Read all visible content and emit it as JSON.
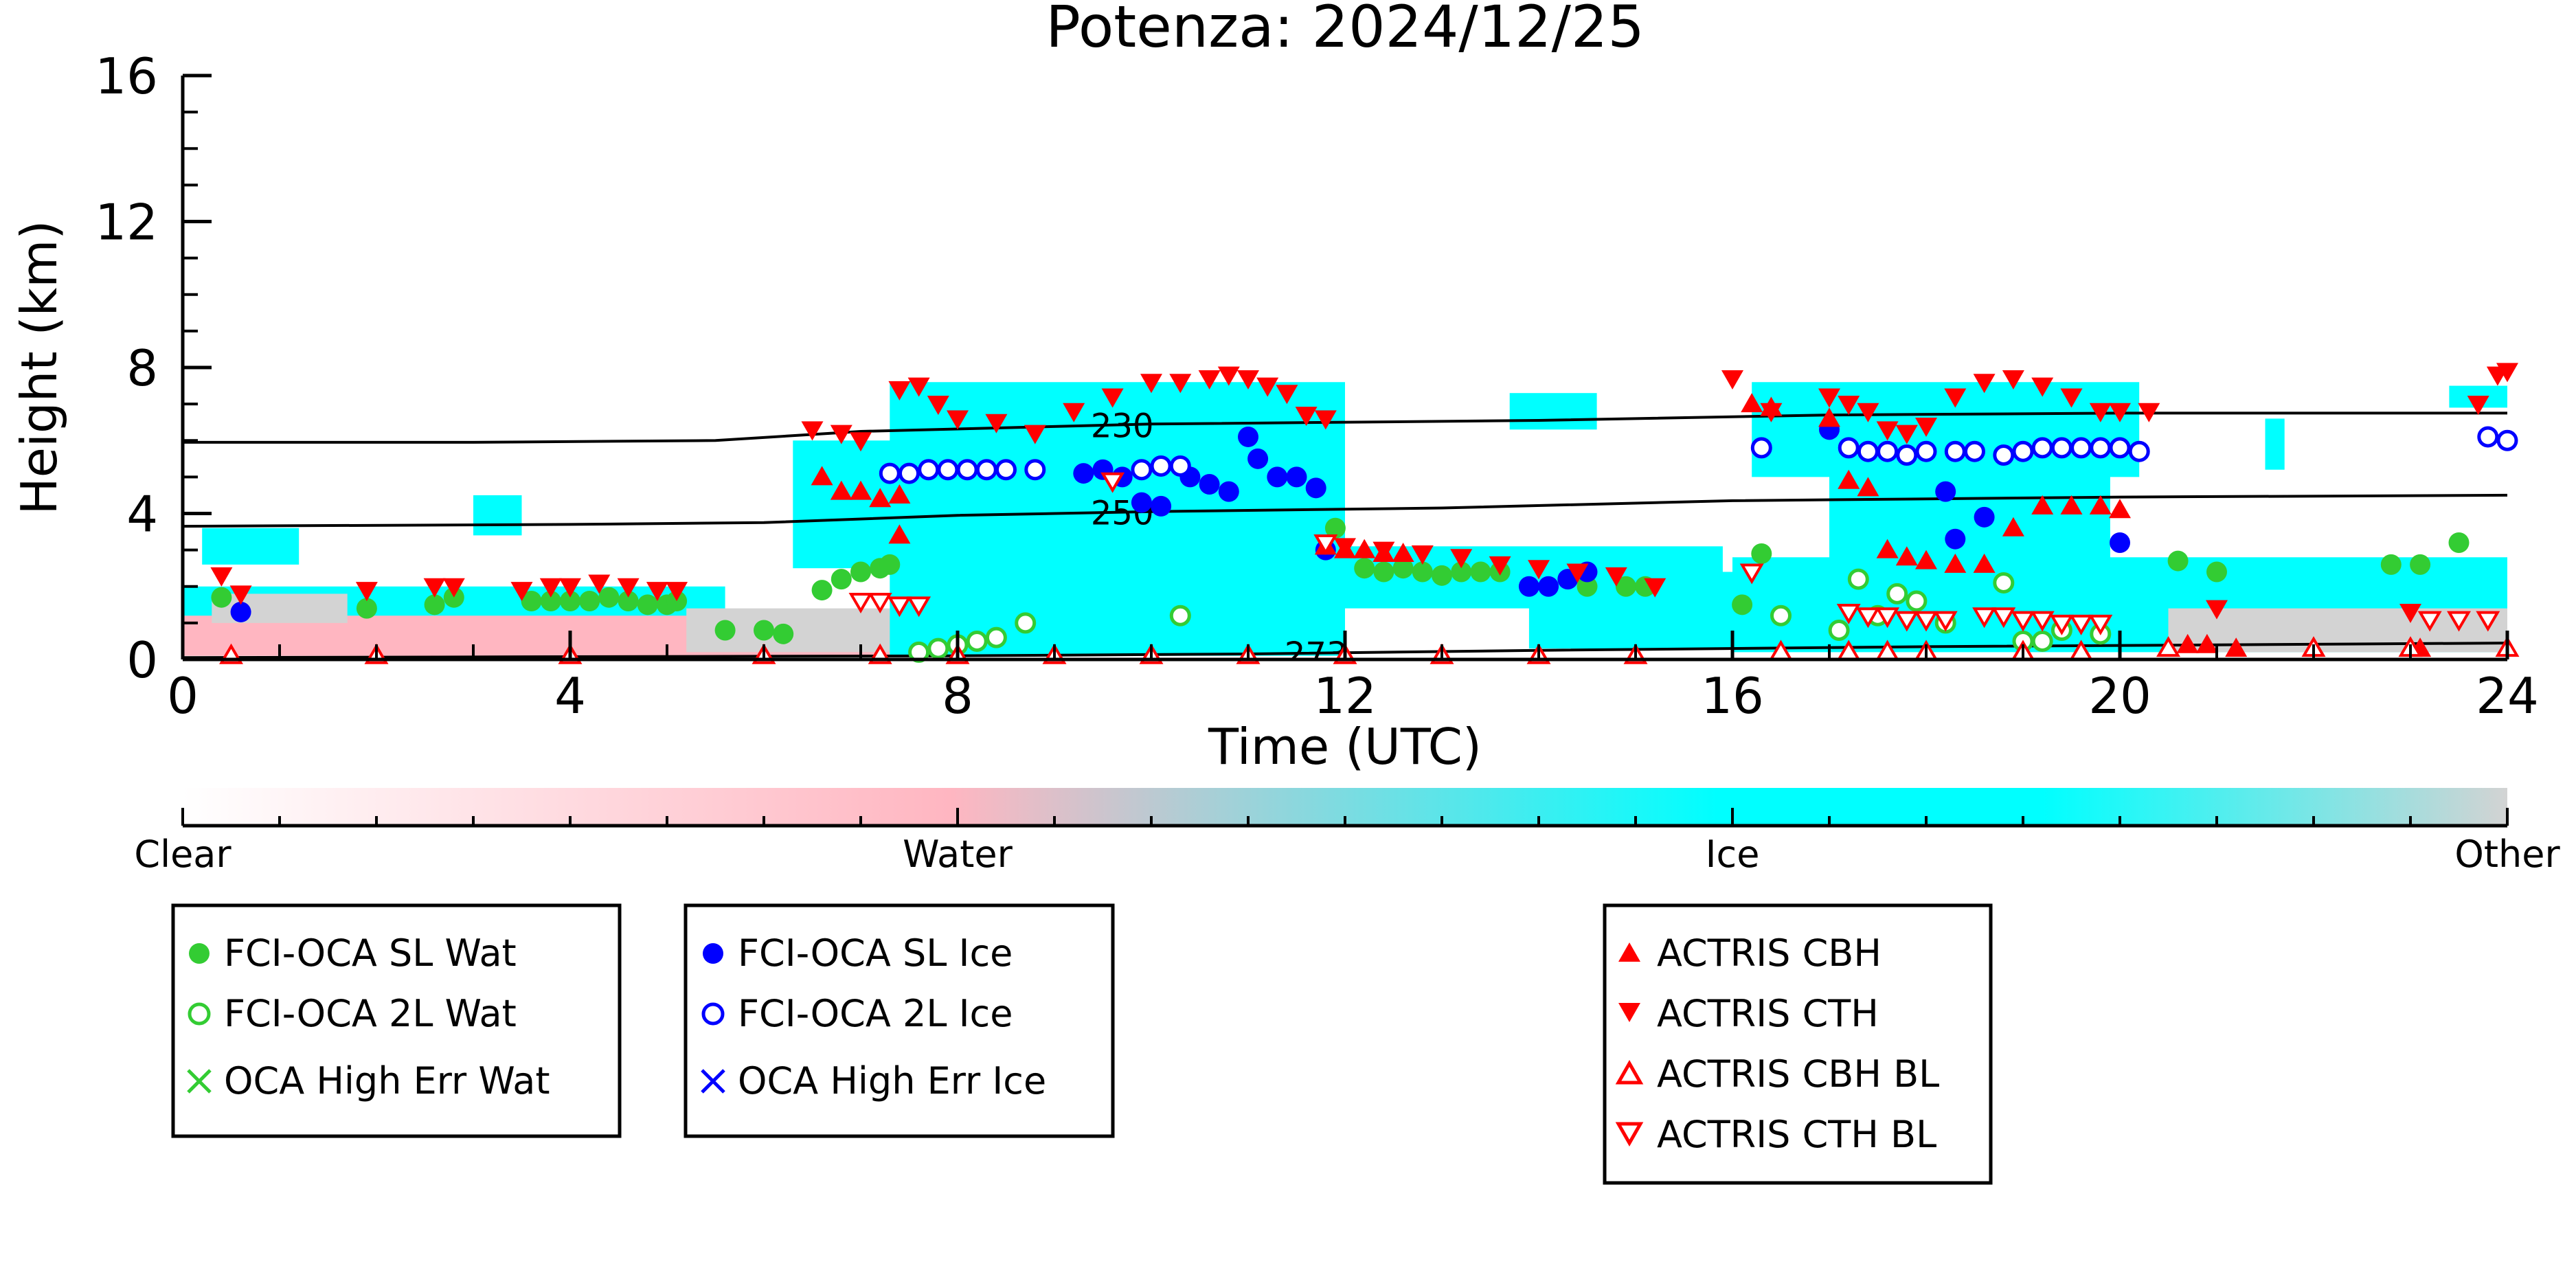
{
  "chart_data": {
    "type": "scatter",
    "title": "Potenza: 2024/12/25",
    "xlabel": "Time (UTC)",
    "ylabel": "Height (km)",
    "xlim": [
      0,
      24
    ],
    "ylim": [
      0,
      16
    ],
    "x_ticks": [
      0,
      4,
      8,
      12,
      16,
      20,
      24
    ],
    "y_ticks": [
      0,
      4,
      8,
      12,
      16
    ],
    "background": "cloud target classification (ACTRIS), shaded by class",
    "isotherms": [
      {
        "label": "230",
        "label_x": 9.7,
        "points": [
          [
            0,
            5.95
          ],
          [
            3,
            5.95
          ],
          [
            5.5,
            6.0
          ],
          [
            7,
            6.25
          ],
          [
            10,
            6.45
          ],
          [
            14,
            6.55
          ],
          [
            17,
            6.7
          ],
          [
            20,
            6.75
          ],
          [
            24,
            6.75
          ]
        ]
      },
      {
        "label": "250",
        "label_x": 9.7,
        "points": [
          [
            0,
            3.65
          ],
          [
            4,
            3.7
          ],
          [
            6,
            3.75
          ],
          [
            8,
            3.95
          ],
          [
            10,
            4.05
          ],
          [
            13,
            4.15
          ],
          [
            16,
            4.35
          ],
          [
            20,
            4.45
          ],
          [
            24,
            4.5
          ]
        ]
      },
      {
        "label": "273",
        "label_x": 11.7,
        "points": [
          [
            0,
            0.05
          ],
          [
            8,
            0.1
          ],
          [
            11,
            0.15
          ],
          [
            14,
            0.25
          ],
          [
            18,
            0.35
          ],
          [
            24,
            0.45
          ]
        ]
      }
    ],
    "colorbar": {
      "labels": [
        "Clear",
        "Water",
        "Ice",
        "Other"
      ],
      "label_positions": [
        0,
        8,
        16,
        24
      ],
      "colors": [
        "#ffffff",
        "#ffb6c1",
        "#00ffff",
        "#d3d3d3"
      ]
    },
    "series": [
      {
        "name": "FCI-OCA SL Wat",
        "marker": "circle-filled",
        "color": "#33cc33",
        "x": [
          0.4,
          1.9,
          2.6,
          2.8,
          3.6,
          3.8,
          4.0,
          4.2,
          4.4,
          4.6,
          4.8,
          5.0,
          5.1,
          5.6,
          6.0,
          6.2,
          6.6,
          6.8,
          7.0,
          7.2,
          7.3,
          11.9,
          12.2,
          12.4,
          12.6,
          12.8,
          13.0,
          13.2,
          13.4,
          13.6,
          14.5,
          14.9,
          15.1,
          16.1,
          16.3,
          20.6,
          21.0,
          22.8,
          23.1,
          23.5
        ],
        "y": [
          1.7,
          1.4,
          1.5,
          1.7,
          1.6,
          1.6,
          1.6,
          1.6,
          1.7,
          1.6,
          1.5,
          1.5,
          1.6,
          0.8,
          0.8,
          0.7,
          1.9,
          2.2,
          2.4,
          2.5,
          2.6,
          3.6,
          2.5,
          2.4,
          2.5,
          2.4,
          2.3,
          2.4,
          2.4,
          2.4,
          2.0,
          2.0,
          2.0,
          1.5,
          2.9,
          2.7,
          2.4,
          2.6,
          2.6,
          3.2
        ]
      },
      {
        "name": "FCI-OCA 2L Wat",
        "marker": "circle-open",
        "color": "#33cc33",
        "x": [
          7.6,
          7.8,
          8.0,
          8.2,
          8.4,
          8.7,
          10.3,
          16.5,
          17.1,
          17.3,
          17.5,
          17.7,
          17.9,
          18.2,
          18.8,
          19.0,
          19.2,
          19.4,
          19.8
        ],
        "y": [
          0.2,
          0.3,
          0.4,
          0.5,
          0.6,
          1.0,
          1.2,
          1.2,
          0.8,
          2.2,
          1.2,
          1.8,
          1.6,
          1.0,
          2.1,
          0.5,
          0.5,
          0.8,
          0.7
        ]
      },
      {
        "name": "OCA High Err Wat",
        "marker": "x",
        "color": "#33cc33",
        "x": [],
        "y": []
      },
      {
        "name": "FCI-OCA SL Ice",
        "marker": "circle-filled",
        "color": "#0000ff",
        "x": [
          0.6,
          9.3,
          9.5,
          9.7,
          9.9,
          10.1,
          10.4,
          10.6,
          10.8,
          11.0,
          11.1,
          11.3,
          11.5,
          11.7,
          11.8,
          13.9,
          14.1,
          14.3,
          14.5,
          17.0,
          18.2,
          18.3,
          18.6,
          20.0
        ],
        "y": [
          1.3,
          5.1,
          5.2,
          5.0,
          4.3,
          4.2,
          5.0,
          4.8,
          4.6,
          6.1,
          5.5,
          5.0,
          5.0,
          4.7,
          3.0,
          2.0,
          2.0,
          2.2,
          2.4,
          6.3,
          4.6,
          3.3,
          3.9,
          3.2
        ]
      },
      {
        "name": "FCI-OCA 2L Ice",
        "marker": "circle-open",
        "color": "#0000ff",
        "x": [
          7.3,
          7.5,
          7.7,
          7.9,
          8.1,
          8.3,
          8.5,
          8.8,
          9.9,
          10.1,
          10.3,
          16.3,
          17.2,
          17.4,
          17.6,
          17.8,
          18.0,
          18.3,
          18.5,
          18.8,
          19.0,
          19.2,
          19.4,
          19.6,
          19.8,
          20.0,
          20.2,
          23.8,
          24.0
        ],
        "y": [
          5.1,
          5.1,
          5.2,
          5.2,
          5.2,
          5.2,
          5.2,
          5.2,
          5.2,
          5.3,
          5.3,
          5.8,
          5.8,
          5.7,
          5.7,
          5.6,
          5.7,
          5.7,
          5.7,
          5.6,
          5.7,
          5.8,
          5.8,
          5.8,
          5.8,
          5.8,
          5.7,
          6.1,
          6.0
        ]
      },
      {
        "name": "OCA High Err Ice",
        "marker": "x",
        "color": "#0000ff",
        "x": [],
        "y": []
      },
      {
        "name": "ACTRIS CBH",
        "marker": "triangle-up-filled",
        "color": "#ff0000",
        "x": [
          6.6,
          6.8,
          7.0,
          7.2,
          7.4,
          7.4,
          11.8,
          12.0,
          12.2,
          12.4,
          12.6,
          16.2,
          16.4,
          17.0,
          17.2,
          17.4,
          17.6,
          17.8,
          18.0,
          18.3,
          18.6,
          18.9,
          19.2,
          19.5,
          19.8,
          20.0,
          20.7,
          20.9,
          21.2,
          23.1
        ],
        "y": [
          5.0,
          4.6,
          4.6,
          4.4,
          4.5,
          3.4,
          3.1,
          3.0,
          3.0,
          2.9,
          2.9,
          7.0,
          6.9,
          6.6,
          4.9,
          4.7,
          3.0,
          2.8,
          2.7,
          2.6,
          2.6,
          3.6,
          4.2,
          4.2,
          4.2,
          4.1,
          0.4,
          0.4,
          0.3,
          0.3
        ]
      },
      {
        "name": "ACTRIS CTH",
        "marker": "triangle-down-filled",
        "color": "#ff0000",
        "x": [
          0.4,
          0.6,
          1.9,
          2.6,
          2.8,
          3.5,
          3.8,
          4.0,
          4.3,
          4.6,
          4.9,
          5.1,
          6.5,
          6.8,
          7.0,
          7.4,
          7.6,
          7.8,
          8.0,
          8.4,
          8.8,
          9.2,
          9.6,
          10.0,
          10.3,
          10.6,
          10.8,
          11.0,
          11.2,
          11.4,
          11.6,
          11.8,
          12.0,
          12.4,
          12.8,
          13.2,
          13.6,
          14.0,
          14.4,
          14.8,
          15.2,
          16.0,
          16.4,
          17.0,
          17.2,
          17.4,
          17.6,
          17.8,
          18.0,
          18.3,
          18.6,
          18.9,
          19.2,
          19.5,
          19.8,
          20.0,
          20.3,
          21.0,
          23.0,
          23.7,
          23.9,
          24.0
        ],
        "y": [
          2.3,
          1.8,
          1.9,
          2.0,
          2.0,
          1.9,
          2.0,
          2.0,
          2.1,
          2.0,
          1.9,
          1.9,
          6.3,
          6.2,
          6.0,
          7.4,
          7.5,
          7.0,
          6.6,
          6.5,
          6.2,
          6.8,
          7.2,
          7.6,
          7.6,
          7.7,
          7.8,
          7.7,
          7.5,
          7.3,
          6.7,
          6.6,
          3.1,
          3.0,
          2.9,
          2.8,
          2.6,
          2.5,
          2.4,
          2.3,
          2.0,
          7.7,
          6.8,
          7.2,
          7.0,
          6.8,
          6.3,
          6.2,
          6.4,
          7.2,
          7.6,
          7.7,
          7.5,
          7.2,
          6.8,
          6.8,
          6.8,
          1.4,
          1.3,
          7.0,
          7.8,
          7.9
        ]
      },
      {
        "name": "ACTRIS CBH BL",
        "marker": "triangle-up-open",
        "color": "#ff0000",
        "x": [
          0.5,
          2.0,
          4.0,
          6.0,
          7.2,
          8.0,
          9.0,
          10.0,
          11.0,
          12.0,
          13.0,
          14.0,
          15.0,
          16.5,
          17.2,
          17.6,
          18.0,
          19.0,
          19.6,
          20.5,
          22.0,
          23.0,
          24.0
        ],
        "y": [
          0.1,
          0.1,
          0.1,
          0.1,
          0.1,
          0.1,
          0.1,
          0.1,
          0.1,
          0.1,
          0.1,
          0.1,
          0.1,
          0.2,
          0.2,
          0.2,
          0.2,
          0.2,
          0.2,
          0.3,
          0.3,
          0.3,
          0.3
        ]
      },
      {
        "name": "ACTRIS CTH BL",
        "marker": "triangle-down-open",
        "color": "#ff0000",
        "x": [
          7.0,
          7.2,
          7.4,
          7.6,
          9.6,
          11.8,
          16.2,
          17.2,
          17.4,
          17.6,
          17.8,
          18.0,
          18.2,
          18.6,
          18.8,
          19.0,
          19.2,
          19.4,
          19.6,
          19.8,
          23.2,
          23.5,
          23.8
        ],
        "y": [
          1.6,
          1.6,
          1.5,
          1.5,
          4.9,
          3.2,
          2.4,
          1.3,
          1.2,
          1.2,
          1.1,
          1.1,
          1.1,
          1.2,
          1.2,
          1.1,
          1.1,
          1.0,
          1.0,
          1.0,
          1.1,
          1.1,
          1.1
        ]
      }
    ]
  },
  "legend_groups": [
    {
      "entries": [
        {
          "label": "FCI-OCA SL Wat"
        },
        {
          "label": "FCI-OCA 2L Wat"
        },
        {
          "label": "OCA High Err Wat"
        }
      ]
    },
    {
      "entries": [
        {
          "label": "FCI-OCA SL Ice"
        },
        {
          "label": "FCI-OCA 2L Ice"
        },
        {
          "label": "OCA High Err Ice"
        }
      ]
    },
    {
      "entries": [
        {
          "label": "ACTRIS CBH"
        },
        {
          "label": "ACTRIS CTH"
        },
        {
          "label": "ACTRIS CBH BL"
        },
        {
          "label": "ACTRIS CTH BL"
        }
      ]
    }
  ]
}
